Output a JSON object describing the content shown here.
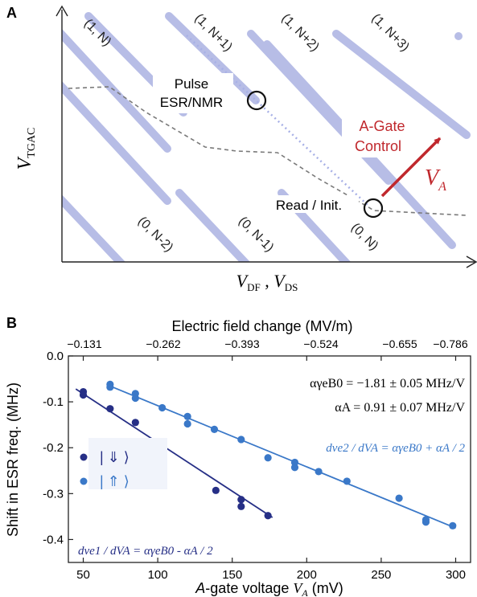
{
  "panel_a": {
    "label": "A",
    "y_axis": {
      "main": "V",
      "sub": "TGAC"
    },
    "x_axis": {
      "main1": "V",
      "sub1": "DF",
      "sep": " , ",
      "main2": "V",
      "sub2": "DS"
    },
    "upper_regions": [
      "(1, N)",
      "(1, N+1)",
      "(1, N+2)",
      "(1, N+3)"
    ],
    "lower_regions": [
      "(0, N-2)",
      "(0, N-1)",
      "(0, N)"
    ],
    "pulse_label": [
      "Pulse",
      "ESR/NMR"
    ],
    "read_label": "Read / Init.",
    "agate_label": [
      "A-Gate",
      "Control"
    ],
    "va_label": {
      "main": "V",
      "sub": "A"
    },
    "colors": {
      "stripe": "#b7bde6",
      "dashed": "#7a7a7a",
      "arrow": "#c0282d",
      "dotted": "#a7b0e6"
    }
  },
  "panel_b": {
    "label": "B",
    "top_axis_title": "Electric field change (MV/m)",
    "top_ticks": [
      "−0.131",
      "−0.262",
      "−0.393",
      "−0.524",
      "−0.655",
      "−0.786"
    ],
    "y_title": "Shift in ESR freq. (MHz)",
    "x_title_prefix": "A",
    "x_title_rest": "-gate voltage ",
    "x_title_var": "V",
    "x_title_sub": "A",
    "x_title_unit": " (mV)",
    "annot_alpha_B": "αγeB0 = −1.81 ± 0.05 MHz/V",
    "annot_alpha_A": "αA  =  0.91 ± 0.07 MHz/V",
    "eq_e2": "dνe2 / dVA = αγeB0 + αA / 2",
    "eq_e1": "dνe1 / dVA = αγeB0 - αA / 2",
    "legend": [
      "| ⇓ ⟩",
      "| ⇑ ⟩"
    ],
    "colors": {
      "dark": "#262f86",
      "light": "#3a78c8"
    }
  },
  "chart_data": {
    "type": "scatter",
    "xlabel": "A-gate voltage VA (mV)",
    "ylabel": "Shift in ESR freq. (MHz)",
    "x2label": "Electric field change (MV/m)",
    "xlim": [
      40,
      310
    ],
    "ylim": [
      -0.45,
      0.0
    ],
    "x_ticks": [
      50,
      100,
      150,
      200,
      250,
      300
    ],
    "y_ticks": [
      0.0,
      -0.1,
      -0.2,
      -0.3,
      -0.4
    ],
    "x_tick_labels": [
      "50",
      "100",
      "150",
      "200",
      "250",
      "300"
    ],
    "y_tick_labels": [
      "0.0",
      "-0.1",
      "-0.2",
      "-0.3",
      "-0.4"
    ],
    "series": [
      {
        "color": "#262f86",
        "x": [
          50,
          50,
          68,
          85,
          102,
          139,
          156,
          156,
          174
        ],
        "y": [
          -0.078,
          -0.085,
          -0.115,
          -0.145,
          -0.193,
          -0.293,
          -0.313,
          -0.328,
          -0.348
        ],
        "fit": {
          "x": [
            45,
            177
          ],
          "y": [
            -0.072,
            -0.352
          ]
        }
      },
      {
        "color": "#3a78c8",
        "x": [
          68,
          68,
          85,
          85,
          103,
          120,
          120,
          138,
          156,
          174,
          192,
          192,
          208,
          227,
          262,
          280,
          280,
          298
        ],
        "y": [
          -0.062,
          -0.068,
          -0.082,
          -0.092,
          -0.113,
          -0.132,
          -0.148,
          -0.16,
          -0.182,
          -0.222,
          -0.232,
          -0.243,
          -0.252,
          -0.273,
          -0.31,
          -0.357,
          -0.362,
          -0.37
        ],
        "fit": {
          "x": [
            66,
            300
          ],
          "y": [
            -0.063,
            -0.375
          ]
        }
      }
    ]
  }
}
